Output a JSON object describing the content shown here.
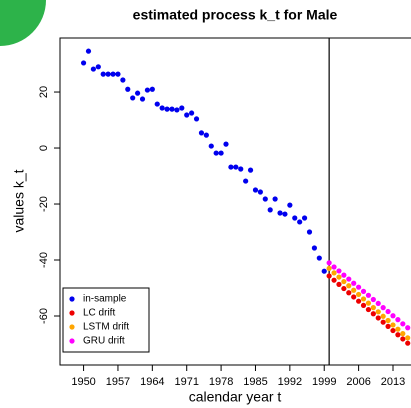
{
  "chart_data": {
    "type": "scatter",
    "title": "estimated process k_t for Male",
    "x_label": "calendar year t",
    "y_label": "values k_t",
    "xlim": [
      1945.2,
      2018.5
    ],
    "ylim": [
      -77.5,
      39.3
    ],
    "xticks": [
      1950,
      1957,
      1964,
      1971,
      1978,
      1985,
      1992,
      1999,
      2006,
      2013
    ],
    "yticks": [
      -60,
      -40,
      -20,
      0,
      20
    ],
    "vline_x": 2000,
    "legend": "bottomleft",
    "series": [
      {
        "name": "in-sample",
        "color": "#0000ee",
        "x": [
          1950,
          1951,
          1952,
          1953,
          1954,
          1955,
          1956,
          1957,
          1958,
          1959,
          1960,
          1961,
          1962,
          1963,
          1964,
          1965,
          1966,
          1967,
          1968,
          1969,
          1970,
          1971,
          1972,
          1973,
          1974,
          1975,
          1976,
          1977,
          1978,
          1979,
          1980,
          1981,
          1982,
          1983,
          1984,
          1985,
          1986,
          1987,
          1988,
          1989,
          1990,
          1991,
          1992,
          1993,
          1994,
          1995,
          1996,
          1997,
          1998,
          1999
        ],
        "values": [
          30.4,
          34.6,
          28.2,
          29,
          26.4,
          26.4,
          26.4,
          26.4,
          24.3,
          21,
          17.9,
          19.6,
          17.5,
          20.7,
          21,
          15.7,
          14.3,
          13.9,
          13.9,
          13.6,
          14.3,
          11.8,
          12.5,
          10.4,
          5.4,
          4.6,
          0.7,
          -1.8,
          -1.8,
          1.4,
          -6.8,
          -6.8,
          -7.5,
          -11.8,
          -7.9,
          -15,
          -15.7,
          -18.2,
          -22.1,
          -18.2,
          -23.2,
          -23.6,
          -20.4,
          -25,
          -26.4,
          -25,
          -30,
          -35.7,
          -39.3,
          -44
        ]
      },
      {
        "name": "LC drift",
        "color": "#ee0000",
        "x": [
          2000,
          2001,
          2002,
          2003,
          2004,
          2005,
          2006,
          2007,
          2008,
          2009,
          2010,
          2011,
          2012,
          2013,
          2014,
          2015,
          2016
        ],
        "values": [
          -45.7,
          -47.2,
          -48.7,
          -50.2,
          -51.7,
          -53.2,
          -54.7,
          -56.2,
          -57.7,
          -59.2,
          -60.7,
          -62.2,
          -63.7,
          -65.2,
          -66.7,
          -68.2,
          -69.7
        ]
      },
      {
        "name": "LSTM drift",
        "color": "#ffa500",
        "x": [
          2000,
          2001,
          2002,
          2003,
          2004,
          2005,
          2006,
          2007,
          2008,
          2009,
          2010,
          2011,
          2012,
          2013,
          2014,
          2015,
          2016
        ],
        "values": [
          -43,
          -44.6,
          -46.1,
          -47.7,
          -49.2,
          -50.8,
          -52.3,
          -53.9,
          -55.4,
          -57,
          -58.5,
          -60.1,
          -61.6,
          -63.2,
          -64.7,
          -66.3,
          -67.8
        ]
      },
      {
        "name": "GRU drift",
        "color": "#ff00ff",
        "x": [
          2000,
          2001,
          2002,
          2003,
          2004,
          2005,
          2006,
          2007,
          2008,
          2009,
          2010,
          2011,
          2012,
          2013,
          2014,
          2015,
          2016
        ],
        "values": [
          -41,
          -42.5,
          -43.9,
          -45.4,
          -46.8,
          -48.3,
          -49.7,
          -51.2,
          -52.6,
          -54.1,
          -55.5,
          -57,
          -58.4,
          -59.9,
          -61.3,
          -62.8,
          -64.2
        ]
      }
    ]
  }
}
